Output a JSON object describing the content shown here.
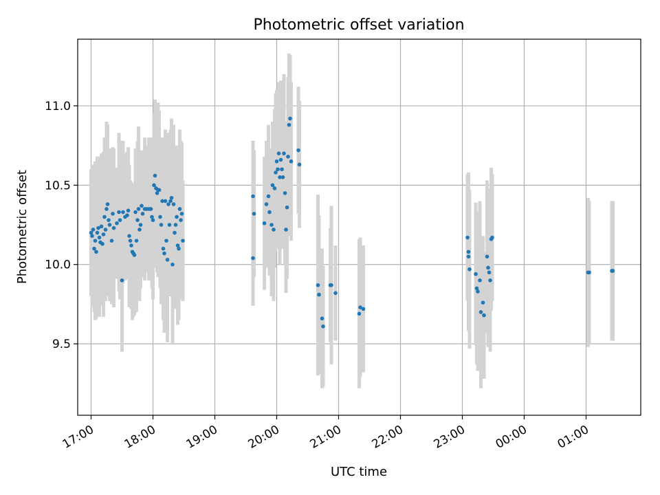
{
  "chart_data": {
    "type": "scatter",
    "title": "Photometric offset variation",
    "xlabel": "UTC time",
    "ylabel": "Photometric offset",
    "xlim": [
      "16:47",
      "01:53"
    ],
    "ylim": [
      9.05,
      11.42
    ],
    "xtick_labels": [
      "17:00",
      "18:00",
      "19:00",
      "20:00",
      "21:00",
      "22:00",
      "23:00",
      "00:00",
      "01:00"
    ],
    "yticks": [
      "9.5",
      "10.0",
      "10.5",
      "11.0"
    ],
    "grid": true,
    "marker_color": "#1f77b4",
    "errorbar_color": "#d3d3d3",
    "series": [
      {
        "points": [
          [
            "17:00",
            10.2,
            0.4
          ],
          [
            "17:01",
            10.18,
            0.45
          ],
          [
            "17:02",
            10.22,
            0.38
          ],
          [
            "17:03",
            10.1,
            0.4
          ],
          [
            "17:04",
            10.15,
            0.5
          ],
          [
            "17:05",
            10.08,
            0.42
          ],
          [
            "17:06",
            10.2,
            0.48
          ],
          [
            "17:07",
            10.23,
            0.45
          ],
          [
            "17:08",
            10.17,
            0.5
          ],
          [
            "17:09",
            10.14,
            0.4
          ],
          [
            "17:10",
            10.24,
            0.46
          ],
          [
            "17:11",
            10.13,
            0.38
          ],
          [
            "17:12",
            10.19,
            0.52
          ],
          [
            "17:13",
            10.3,
            0.5
          ],
          [
            "17:14",
            10.22,
            0.45
          ],
          [
            "17:15",
            10.35,
            0.55
          ],
          [
            "17:16",
            10.38,
            0.5
          ],
          [
            "17:17",
            10.28,
            0.45
          ],
          [
            "17:18",
            10.25,
            0.48
          ],
          [
            "17:20",
            10.15,
            0.4
          ],
          [
            "17:21",
            10.32,
            0.42
          ],
          [
            "17:22",
            10.23,
            0.5
          ],
          [
            "17:25",
            10.26,
            0.35
          ],
          [
            "17:27",
            10.33,
            0.5
          ],
          [
            "17:28",
            10.28,
            0.5
          ],
          [
            "17:30",
            9.9,
            0.45
          ],
          [
            "17:31",
            10.33,
            0.45
          ],
          [
            "17:33",
            10.3,
            0.4
          ],
          [
            "17:35",
            10.31,
            0.4
          ],
          [
            "17:36",
            10.34,
            0.4
          ],
          [
            "17:37",
            10.18,
            0.45
          ],
          [
            "17:38",
            10.15,
            0.38
          ],
          [
            "17:39",
            10.12,
            0.4
          ],
          [
            "17:40",
            10.08,
            0.43
          ],
          [
            "17:41",
            10.07,
            0.4
          ],
          [
            "17:42",
            10.06,
            0.38
          ],
          [
            "17:43",
            10.33,
            0.4
          ],
          [
            "17:44",
            10.15,
            0.45
          ],
          [
            "17:45",
            10.28,
            0.5
          ],
          [
            "17:46",
            10.35,
            0.52
          ],
          [
            "17:47",
            10.22,
            0.45
          ],
          [
            "17:48",
            10.25,
            0.4
          ],
          [
            "17:49",
            10.37,
            0.35
          ],
          [
            "17:50",
            10.32,
            0.4
          ],
          [
            "17:52",
            10.35,
            0.45
          ],
          [
            "17:54",
            10.35,
            0.4
          ],
          [
            "17:56",
            10.35,
            0.45
          ],
          [
            "17:58",
            10.35,
            0.45
          ],
          [
            "17:59",
            10.3,
            0.45
          ],
          [
            "18:00",
            10.28,
            0.5
          ],
          [
            "18:01",
            10.5,
            0.45
          ],
          [
            "18:02",
            10.56,
            0.48
          ],
          [
            "18:03",
            10.48,
            0.5
          ],
          [
            "18:04",
            10.45,
            0.5
          ],
          [
            "18:05",
            10.47,
            0.55
          ],
          [
            "18:06",
            10.47,
            0.5
          ],
          [
            "18:07",
            10.3,
            0.45
          ],
          [
            "18:08",
            10.25,
            0.5
          ],
          [
            "18:09",
            10.4,
            0.4
          ],
          [
            "18:10",
            10.1,
            0.45
          ],
          [
            "18:11",
            10.07,
            0.5
          ],
          [
            "18:12",
            10.4,
            0.45
          ],
          [
            "18:13",
            10.15,
            0.5
          ],
          [
            "18:14",
            10.03,
            0.52
          ],
          [
            "18:15",
            10.38,
            0.45
          ],
          [
            "18:16",
            10.25,
            0.45
          ],
          [
            "18:17",
            10.4,
            0.45
          ],
          [
            "18:18",
            10.42,
            0.5
          ],
          [
            "18:19",
            10.0,
            0.5
          ],
          [
            "18:20",
            10.38,
            0.5
          ],
          [
            "18:21",
            10.2,
            0.48
          ],
          [
            "18:22",
            10.25,
            0.45
          ],
          [
            "18:23",
            10.3,
            0.45
          ],
          [
            "18:24",
            10.12,
            0.5
          ],
          [
            "18:25",
            10.1,
            0.45
          ],
          [
            "18:26",
            10.35,
            0.5
          ],
          [
            "18:27",
            10.28,
            0.5
          ],
          [
            "18:28",
            10.32,
            0.45
          ],
          [
            "18:29",
            10.15,
            0.38
          ],
          [
            "19:37",
            10.43,
            0.35
          ],
          [
            "19:37",
            10.04,
            0.3
          ],
          [
            "19:38",
            10.32,
            0.4
          ],
          [
            "19:48",
            10.26,
            0.42
          ],
          [
            "19:50",
            10.38,
            0.4
          ],
          [
            "19:52",
            10.43,
            0.45
          ],
          [
            "19:53",
            10.33,
            0.4
          ],
          [
            "19:55",
            10.25,
            0.45
          ],
          [
            "19:56",
            10.5,
            0.4
          ],
          [
            "19:57",
            10.22,
            0.45
          ],
          [
            "19:58",
            10.48,
            0.5
          ],
          [
            "19:59",
            10.58,
            0.5
          ],
          [
            "20:00",
            10.65,
            0.45
          ],
          [
            "20:01",
            10.6,
            0.5
          ],
          [
            "20:02",
            10.7,
            0.45
          ],
          [
            "20:03",
            10.55,
            0.55
          ],
          [
            "20:04",
            10.66,
            0.5
          ],
          [
            "20:05",
            10.6,
            0.5
          ],
          [
            "20:06",
            10.55,
            0.45
          ],
          [
            "20:07",
            10.7,
            0.5
          ],
          [
            "20:08",
            10.45,
            0.45
          ],
          [
            "20:09",
            10.22,
            0.4
          ],
          [
            "20:10",
            10.36,
            0.45
          ],
          [
            "20:11",
            10.68,
            0.5
          ],
          [
            "20:12",
            10.88,
            0.45
          ],
          [
            "20:13",
            10.92,
            0.4
          ],
          [
            "20:14",
            10.65,
            0.5
          ],
          [
            "20:21",
            10.72,
            0.4
          ],
          [
            "20:22",
            10.63,
            0.4
          ],
          [
            "20:40",
            9.87,
            0.57
          ],
          [
            "20:41",
            9.81,
            0.5
          ],
          [
            "20:44",
            9.66,
            0.44
          ],
          [
            "20:45",
            9.61,
            0.38
          ],
          [
            "20:52",
            9.87,
            0.36
          ],
          [
            "20:53",
            9.87,
            0.5
          ],
          [
            "20:57",
            9.82,
            0.3
          ],
          [
            "21:20",
            9.69,
            0.47
          ],
          [
            "21:21",
            9.73,
            0.44
          ],
          [
            "21:24",
            9.72,
            0.4
          ],
          [
            "23:05",
            10.17,
            0.4
          ],
          [
            "23:06",
            10.08,
            0.5
          ],
          [
            "23:06",
            10.05,
            0.45
          ],
          [
            "23:07",
            9.97,
            0.5
          ],
          [
            "23:13",
            9.94,
            0.45
          ],
          [
            "23:14",
            9.85,
            0.48
          ],
          [
            "23:15",
            9.83,
            0.5
          ],
          [
            "23:17",
            9.9,
            0.5
          ],
          [
            "23:18",
            9.7,
            0.48
          ],
          [
            "23:20",
            9.76,
            0.42
          ],
          [
            "23:21",
            9.68,
            0.4
          ],
          [
            "23:24",
            10.05,
            0.48
          ],
          [
            "23:25",
            9.98,
            0.5
          ],
          [
            "23:26",
            9.95,
            0.45
          ],
          [
            "23:27",
            9.9,
            0.45
          ],
          [
            "23:28",
            10.16,
            0.45
          ],
          [
            "23:29",
            10.17,
            0.4
          ],
          [
            "01:02",
            9.95,
            0.47
          ],
          [
            "01:03",
            9.95,
            0.45
          ],
          [
            "01:25",
            9.96,
            0.44
          ],
          [
            "01:26",
            9.96,
            0.44
          ]
        ]
      }
    ]
  }
}
